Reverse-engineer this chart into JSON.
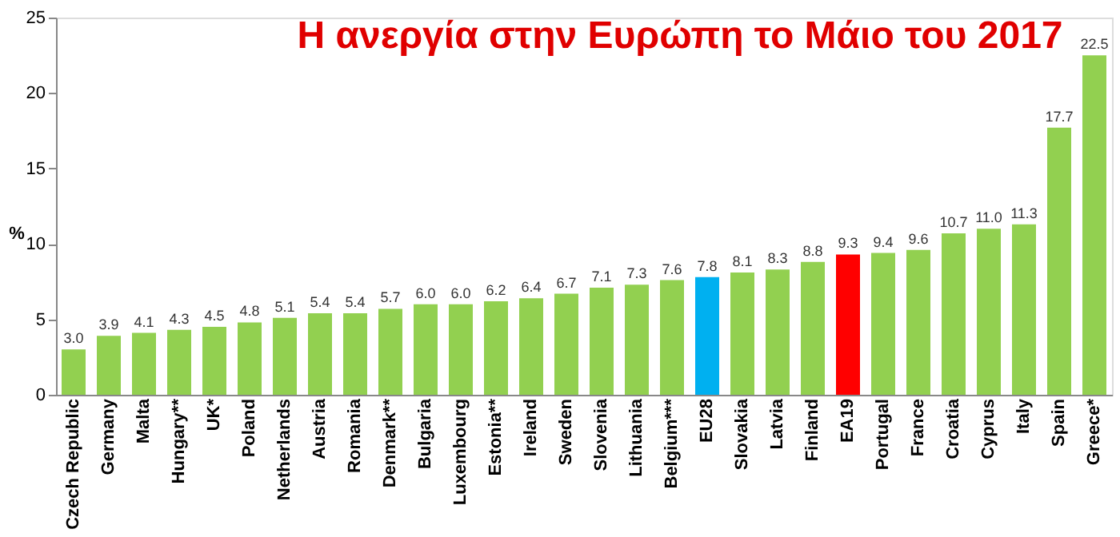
{
  "chart_data": {
    "type": "bar",
    "title": "Η ανεργία στην Ευρώπη το Μάιο του 2017",
    "ylabel": "%",
    "categories": [
      "Czech Republic",
      "Germany",
      "Malta",
      "Hungary**",
      "UK*",
      "Poland",
      "Netherlands",
      "Austria",
      "Romania",
      "Denmark**",
      "Bulgaria",
      "Luxembourg",
      "Estonia**",
      "Ireland",
      "Sweden",
      "Slovenia",
      "Lithuania",
      "Belgium***",
      "EU28",
      "Slovakia",
      "Latvia",
      "Finland",
      "EA19",
      "Portugal",
      "France",
      "Croatia",
      "Cyprus",
      "Italy",
      "Spain",
      "Greece*"
    ],
    "values": [
      3.0,
      3.9,
      4.1,
      4.3,
      4.5,
      4.8,
      5.1,
      5.4,
      5.4,
      5.7,
      6.0,
      6.0,
      6.2,
      6.4,
      6.7,
      7.1,
      7.3,
      7.6,
      7.8,
      8.1,
      8.3,
      8.8,
      9.3,
      9.4,
      9.6,
      10.7,
      11.0,
      11.3,
      17.7,
      22.5
    ],
    "colors": [
      "#92d050",
      "#92d050",
      "#92d050",
      "#92d050",
      "#92d050",
      "#92d050",
      "#92d050",
      "#92d050",
      "#92d050",
      "#92d050",
      "#92d050",
      "#92d050",
      "#92d050",
      "#92d050",
      "#92d050",
      "#92d050",
      "#92d050",
      "#92d050",
      "#00b0f0",
      "#92d050",
      "#92d050",
      "#92d050",
      "#ff0000",
      "#92d050",
      "#92d050",
      "#92d050",
      "#92d050",
      "#92d050",
      "#92d050",
      "#92d050"
    ],
    "value_labels": [
      "3.0",
      "3.9",
      "4.1",
      "4.3",
      "4.5",
      "4.8",
      "5.1",
      "5.4",
      "5.4",
      "5.7",
      "6.0",
      "6.0",
      "6.2",
      "6.4",
      "6.7",
      "7.1",
      "7.3",
      "7.6",
      "7.8",
      "8.1",
      "8.3",
      "8.8",
      "9.3",
      "9.4",
      "9.6",
      "10.7",
      "11.0",
      "11.3",
      "17.7",
      "22.5"
    ],
    "ylim": [
      0,
      25
    ],
    "yticks": [
      0,
      5,
      10,
      15,
      20,
      25
    ],
    "grid": false
  }
}
